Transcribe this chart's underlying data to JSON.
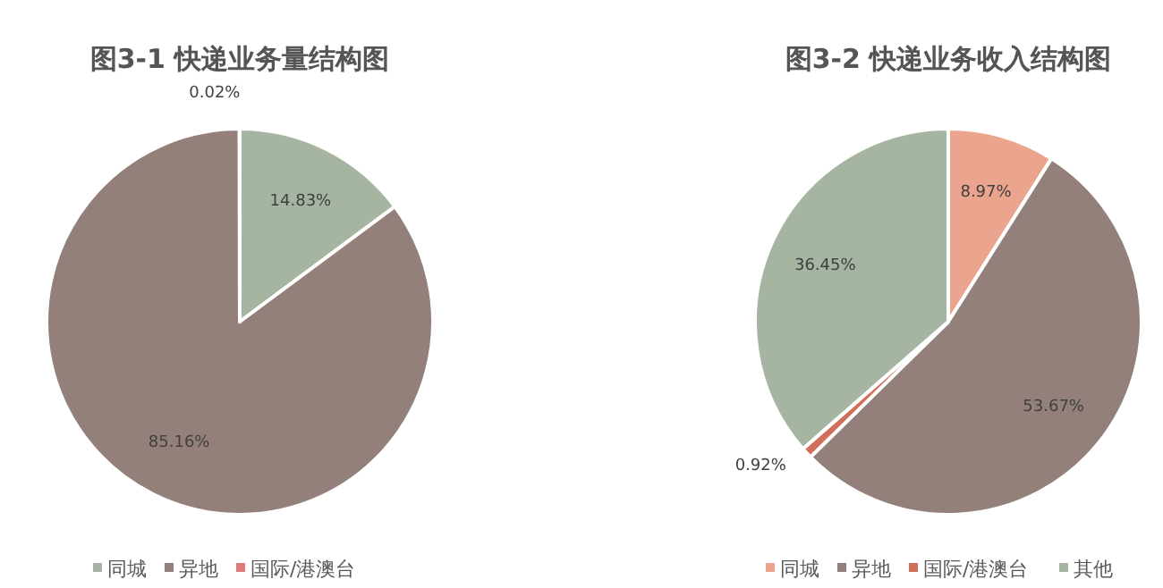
{
  "chart_data": [
    {
      "type": "pie",
      "title": "图3-1 快递业务量结构图",
      "categories": [
        "同城",
        "异地",
        "国际/港澳台"
      ],
      "values": [
        14.83,
        85.16,
        0.02
      ],
      "value_labels": [
        "14.83%",
        "85.16%",
        "0.02%"
      ],
      "colors": [
        "#a6b5a2",
        "#94807a",
        "#e07a78"
      ],
      "legend": "bottom"
    },
    {
      "type": "pie",
      "title": "图3-2 快递业务收入结构图",
      "categories": [
        "同城",
        "异地",
        "国际/港澳台",
        "其他"
      ],
      "values": [
        8.97,
        53.67,
        0.92,
        36.45
      ],
      "value_labels": [
        "8.97%",
        "53.67%",
        "0.92%",
        "36.45%"
      ],
      "colors": [
        "#eba48e",
        "#94807a",
        "#d0705a",
        "#a6b5a2"
      ],
      "legend": "bottom"
    }
  ]
}
